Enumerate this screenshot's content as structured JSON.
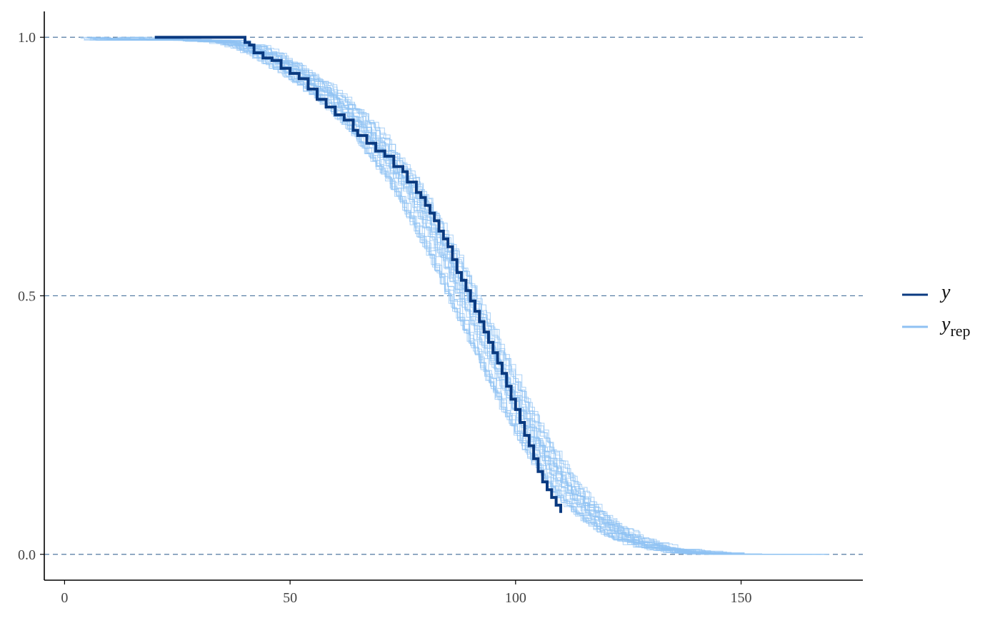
{
  "chart_data": {
    "type": "line",
    "title": "",
    "xlabel": "",
    "ylabel": "",
    "xlim": [
      -4.5,
      177
    ],
    "ylim": [
      -0.05,
      1.05
    ],
    "x_ticks": [
      0,
      50,
      100,
      150
    ],
    "y_ticks": [
      0.0,
      0.5,
      1.0
    ],
    "x_tick_labels": [
      "0",
      "50",
      "100",
      "150"
    ],
    "y_tick_labels": [
      "0.0",
      "0.5",
      "1.0"
    ],
    "grid": "horizontal dashed at y ticks",
    "legend_position": "right",
    "legend": [
      {
        "key": "y",
        "label": "y",
        "subscript": "",
        "color": "#0a3a80"
      },
      {
        "key": "yrep",
        "label": "y",
        "subscript": "rep",
        "color": "#8fc1f3"
      }
    ],
    "series": [
      {
        "key": "y",
        "color": "#0a3a80",
        "step": true,
        "x": [
          20,
          38,
          40,
          41,
          42,
          44,
          46,
          48,
          50,
          52,
          54,
          56,
          58,
          60,
          62,
          64,
          65,
          67,
          69,
          71,
          73,
          75,
          76,
          78,
          79,
          80,
          81,
          82,
          83,
          84,
          85,
          86,
          87,
          88,
          89,
          90,
          91,
          92,
          93,
          94,
          95,
          96,
          97,
          98,
          99,
          100,
          101,
          102,
          103,
          104,
          105,
          106,
          107,
          108,
          109,
          110
        ],
        "y": [
          1.0,
          1.0,
          0.99,
          0.985,
          0.97,
          0.96,
          0.955,
          0.94,
          0.93,
          0.92,
          0.9,
          0.88,
          0.865,
          0.85,
          0.84,
          0.82,
          0.81,
          0.795,
          0.78,
          0.77,
          0.75,
          0.74,
          0.72,
          0.7,
          0.69,
          0.675,
          0.66,
          0.645,
          0.625,
          0.61,
          0.595,
          0.57,
          0.545,
          0.53,
          0.51,
          0.49,
          0.47,
          0.45,
          0.43,
          0.41,
          0.39,
          0.37,
          0.35,
          0.325,
          0.3,
          0.28,
          0.255,
          0.23,
          0.21,
          0.185,
          0.16,
          0.14,
          0.125,
          0.11,
          0.095,
          0.08
        ]
      }
    ],
    "replicates": {
      "key": "yrep",
      "count": 30,
      "color": "#8fc1f3",
      "center": {
        "x": [
          2,
          25,
          35,
          40,
          45,
          50,
          55,
          60,
          65,
          70,
          75,
          80,
          85,
          90,
          95,
          100,
          105,
          110,
          115,
          120,
          125,
          130,
          135,
          140,
          150,
          160,
          170
        ],
        "y": [
          1.0,
          1.0,
          0.995,
          0.985,
          0.965,
          0.94,
          0.91,
          0.875,
          0.835,
          0.78,
          0.72,
          0.645,
          0.56,
          0.465,
          0.375,
          0.285,
          0.205,
          0.14,
          0.09,
          0.055,
          0.03,
          0.018,
          0.01,
          0.006,
          0.003,
          0.001,
          0.0
        ]
      }
    }
  }
}
